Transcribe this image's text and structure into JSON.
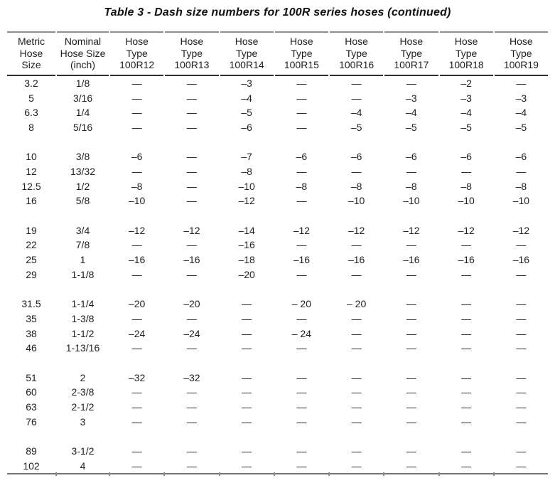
{
  "title": "Table 3 - Dash size numbers for 100R series hoses (continued)",
  "colors": {
    "text": "#212121",
    "line_top": "#8f8f8f",
    "line_header_bottom": "#2e2e2e",
    "line_bottom": "#757575"
  },
  "table": {
    "na_symbol": "—",
    "columns": [
      "Metric\nHose\nSize",
      "Nominal\nHose Size\n(inch)",
      "Hose\nType\n100R12",
      "Hose\nType\n100R13",
      "Hose\nType\n100R14",
      "Hose\nType\n100R15",
      "Hose\nType\n100R16",
      "Hose\nType\n100R17",
      "Hose\nType\n100R18",
      "Hose\nType\n100R19"
    ],
    "groups": [
      {
        "rows": [
          [
            "3.2",
            "1/8",
            "—",
            "—",
            "–3",
            "—",
            "—",
            "—",
            "–2",
            "—"
          ],
          [
            "5",
            "3/16",
            "—",
            "—",
            "–4",
            "—",
            "—",
            "–3",
            "–3",
            "–3"
          ],
          [
            "6.3",
            "1/4",
            "—",
            "—",
            "–5",
            "—",
            "–4",
            "–4",
            "–4",
            "–4"
          ],
          [
            "8",
            "5/16",
            "—",
            "—",
            "–6",
            "—",
            "–5",
            "–5",
            "–5",
            "–5"
          ]
        ]
      },
      {
        "rows": [
          [
            "10",
            "3/8",
            "–6",
            "—",
            "–7",
            "–6",
            "–6",
            "–6",
            "–6",
            "–6"
          ],
          [
            "12",
            "13/32",
            "—",
            "—",
            "–8",
            "—",
            "—",
            "—",
            "—",
            "—"
          ],
          [
            "12.5",
            "1/2",
            "–8",
            "—",
            "–10",
            "–8",
            "–8",
            "–8",
            "–8",
            "–8"
          ],
          [
            "16",
            "5/8",
            "–10",
            "—",
            "–12",
            "—",
            "–10",
            "–10",
            "–10",
            "–10"
          ]
        ]
      },
      {
        "rows": [
          [
            "19",
            "3/4",
            "–12",
            "–12",
            "–14",
            "–12",
            "–12",
            "–12",
            "–12",
            "–12"
          ],
          [
            "22",
            "7/8",
            "—",
            "—",
            "–16",
            "—",
            "—",
            "—",
            "—",
            "—"
          ],
          [
            "25",
            "1",
            "–16",
            "–16",
            "–18",
            "–16",
            "–16",
            "–16",
            "–16",
            "–16"
          ],
          [
            "29",
            "1-1/8",
            "—",
            "—",
            "–20",
            "—",
            "—",
            "—",
            "—",
            "—"
          ]
        ]
      },
      {
        "rows": [
          [
            "31.5",
            "1-1/4",
            "–20",
            "–20",
            "—",
            "– 20",
            "– 20",
            "—",
            "—",
            "—"
          ],
          [
            "35",
            "1-3/8",
            "—",
            "—",
            "—",
            "—",
            "—",
            "—",
            "—",
            "—"
          ],
          [
            "38",
            "1-1/2",
            "–24",
            "–24",
            "—",
            "– 24",
            "—",
            "—",
            "—",
            "—"
          ],
          [
            "46",
            "1-13/16",
            "—",
            "—",
            "—",
            "—",
            "—",
            "—",
            "—",
            "—"
          ]
        ]
      },
      {
        "rows": [
          [
            "51",
            "2",
            "–32",
            "–32",
            "—",
            "—",
            "—",
            "—",
            "—",
            "—"
          ],
          [
            "60",
            "2-3/8",
            "—",
            "—",
            "—",
            "—",
            "—",
            "—",
            "—",
            "—"
          ],
          [
            "63",
            "2-1/2",
            "—",
            "—",
            "—",
            "—",
            "—",
            "—",
            "—",
            "—"
          ],
          [
            "76",
            "3",
            "—",
            "—",
            "—",
            "—",
            "—",
            "—",
            "—",
            "—"
          ]
        ]
      },
      {
        "rows": [
          [
            "89",
            "3-1/2",
            "—",
            "—",
            "—",
            "—",
            "—",
            "—",
            "—",
            "—"
          ],
          [
            "102",
            "4",
            "—",
            "—",
            "—",
            "—",
            "—",
            "—",
            "—",
            "—"
          ]
        ]
      }
    ]
  }
}
